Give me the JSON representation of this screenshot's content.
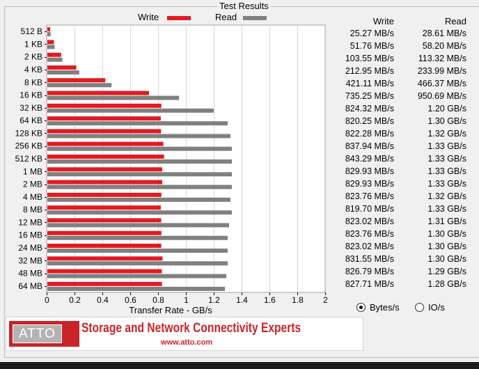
{
  "panel_title": "Test Results",
  "legend": [
    {
      "label": "Write",
      "color": "#e11b22"
    },
    {
      "label": "Read",
      "color": "#808080"
    }
  ],
  "table": {
    "write_header": "Write",
    "read_header": "Read",
    "rows": [
      {
        "size": "512 B",
        "write": "25.27 MB/s",
        "read": "28.61 MB/s"
      },
      {
        "size": "1 KB",
        "write": "51.76 MB/s",
        "read": "58.20 MB/s"
      },
      {
        "size": "2 KB",
        "write": "103.55 MB/s",
        "read": "113.32 MB/s"
      },
      {
        "size": "4 KB",
        "write": "212.95 MB/s",
        "read": "233.99 MB/s"
      },
      {
        "size": "8 KB",
        "write": "421.11 MB/s",
        "read": "466.37 MB/s"
      },
      {
        "size": "16 KB",
        "write": "735.25 MB/s",
        "read": "950.69 MB/s"
      },
      {
        "size": "32 KB",
        "write": "824.32 MB/s",
        "read": "1.20 GB/s"
      },
      {
        "size": "64 KB",
        "write": "820.25 MB/s",
        "read": "1.30 GB/s"
      },
      {
        "size": "128 KB",
        "write": "822.28 MB/s",
        "read": "1.32 GB/s"
      },
      {
        "size": "256 KB",
        "write": "837.94 MB/s",
        "read": "1.33 GB/s"
      },
      {
        "size": "512 KB",
        "write": "843.29 MB/s",
        "read": "1.33 GB/s"
      },
      {
        "size": "1 MB",
        "write": "829.93 MB/s",
        "read": "1.33 GB/s"
      },
      {
        "size": "2 MB",
        "write": "829.93 MB/s",
        "read": "1.33 GB/s"
      },
      {
        "size": "4 MB",
        "write": "823.76 MB/s",
        "read": "1.32 GB/s"
      },
      {
        "size": "8 MB",
        "write": "819.70 MB/s",
        "read": "1.33 GB/s"
      },
      {
        "size": "12 MB",
        "write": "823.02 MB/s",
        "read": "1.31 GB/s"
      },
      {
        "size": "16 MB",
        "write": "823.76 MB/s",
        "read": "1.30 GB/s"
      },
      {
        "size": "24 MB",
        "write": "823.02 MB/s",
        "read": "1.30 GB/s"
      },
      {
        "size": "32 MB",
        "write": "831.55 MB/s",
        "read": "1.30 GB/s"
      },
      {
        "size": "48 MB",
        "write": "826.79 MB/s",
        "read": "1.29 GB/s"
      },
      {
        "size": "64 MB",
        "write": "827.71 MB/s",
        "read": "1.28 GB/s"
      }
    ]
  },
  "chart_data": {
    "type": "bar",
    "orientation": "horizontal",
    "categories": [
      "512 B",
      "1 KB",
      "2 KB",
      "4 KB",
      "8 KB",
      "16 KB",
      "32 KB",
      "64 KB",
      "128 KB",
      "256 KB",
      "512 KB",
      "1 MB",
      "2 MB",
      "4 MB",
      "8 MB",
      "12 MB",
      "16 MB",
      "24 MB",
      "32 MB",
      "48 MB",
      "64 MB"
    ],
    "series": [
      {
        "name": "Write",
        "color": "#e11b22",
        "values": [
          0.025,
          0.052,
          0.104,
          0.213,
          0.421,
          0.735,
          0.824,
          0.82,
          0.822,
          0.838,
          0.843,
          0.83,
          0.83,
          0.824,
          0.82,
          0.823,
          0.824,
          0.823,
          0.832,
          0.827,
          0.828
        ]
      },
      {
        "name": "Read",
        "color": "#808080",
        "values": [
          0.029,
          0.058,
          0.113,
          0.234,
          0.466,
          0.951,
          1.2,
          1.3,
          1.32,
          1.33,
          1.33,
          1.33,
          1.33,
          1.32,
          1.33,
          1.31,
          1.3,
          1.3,
          1.3,
          1.29,
          1.28
        ]
      }
    ],
    "xlabel": "Transfer Rate - GB/s",
    "xlim": [
      0,
      2
    ],
    "xticks": [
      "0",
      "0.2",
      "0.4",
      "0.6",
      "0.8",
      "1",
      "1.2",
      "1.4",
      "1.6",
      "1.8",
      "2"
    ],
    "grid": "vertical"
  },
  "units": {
    "options": [
      {
        "label": "Bytes/s",
        "selected": true
      },
      {
        "label": "IO/s",
        "selected": false
      }
    ]
  },
  "banner": {
    "logo_text": "ATTO",
    "headline": "Storage and Network Connectivity Experts",
    "url": "www.atto.com"
  }
}
